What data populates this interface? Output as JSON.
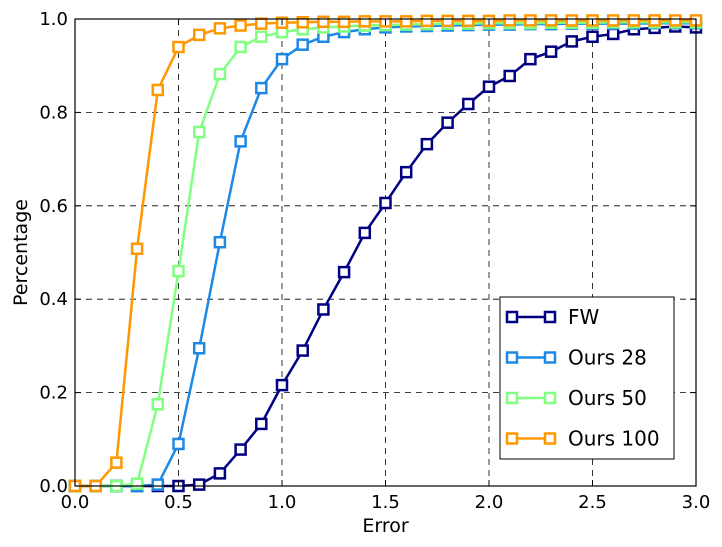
{
  "chart_data": {
    "type": "line",
    "xlabel": "Error",
    "ylabel": "Percentage",
    "xlim": [
      0.0,
      3.0
    ],
    "ylim": [
      0.0,
      1.0
    ],
    "xticks": [
      "0.0",
      "0.5",
      "1.0",
      "1.5",
      "2.0",
      "2.5",
      "3.0"
    ],
    "yticks": [
      "0.0",
      "0.2",
      "0.4",
      "0.6",
      "0.8",
      "1.0"
    ],
    "grid": true,
    "legend_position": "lower-right",
    "marker": "square",
    "x": [
      0.0,
      0.1,
      0.2,
      0.3,
      0.4,
      0.5,
      0.6,
      0.7,
      0.8,
      0.9,
      1.0,
      1.1,
      1.2,
      1.3,
      1.4,
      1.5,
      1.6,
      1.7,
      1.8,
      1.9,
      2.0,
      2.1,
      2.2,
      2.3,
      2.4,
      2.5,
      2.6,
      2.7,
      2.8,
      2.9,
      3.0
    ],
    "series": [
      {
        "name": "FW",
        "color": "#000080",
        "values": [
          0.0,
          0.0,
          0.0,
          0.0,
          0.0,
          0.0,
          0.003,
          0.027,
          0.078,
          0.133,
          0.216,
          0.29,
          0.378,
          0.458,
          0.542,
          0.606,
          0.672,
          0.732,
          0.778,
          0.818,
          0.855,
          0.878,
          0.914,
          0.93,
          0.952,
          0.962,
          0.968,
          0.978,
          0.981,
          0.984,
          0.982
        ]
      },
      {
        "name": "Ours 28",
        "color": "#1e88e5",
        "values": [
          0.0,
          0.0,
          0.0,
          0.0,
          0.003,
          0.09,
          0.295,
          0.522,
          0.738,
          0.852,
          0.914,
          0.945,
          0.962,
          0.972,
          0.978,
          0.982,
          0.984,
          0.985,
          0.986,
          0.987,
          0.988,
          0.988,
          0.989,
          0.989,
          0.99,
          0.99,
          0.99,
          0.99,
          0.991,
          0.991,
          0.991
        ]
      },
      {
        "name": "Ours 50",
        "color": "#80ff80",
        "values": [
          0.0,
          0.0,
          0.0,
          0.005,
          0.175,
          0.46,
          0.758,
          0.882,
          0.94,
          0.962,
          0.972,
          0.978,
          0.982,
          0.984,
          0.986,
          0.987,
          0.988,
          0.989,
          0.99,
          0.99,
          0.991,
          0.991,
          0.991,
          0.992,
          0.992,
          0.992,
          0.993,
          0.993,
          0.993,
          0.993,
          0.993
        ]
      },
      {
        "name": "Ours 100",
        "color": "#ff9800",
        "values": [
          0.0,
          0.0,
          0.05,
          0.508,
          0.848,
          0.94,
          0.966,
          0.98,
          0.986,
          0.99,
          0.992,
          0.993,
          0.994,
          0.994,
          0.995,
          0.995,
          0.995,
          0.996,
          0.996,
          0.996,
          0.996,
          0.997,
          0.997,
          0.997,
          0.997,
          0.997,
          0.997,
          0.997,
          0.997,
          0.997,
          0.997
        ]
      }
    ]
  }
}
